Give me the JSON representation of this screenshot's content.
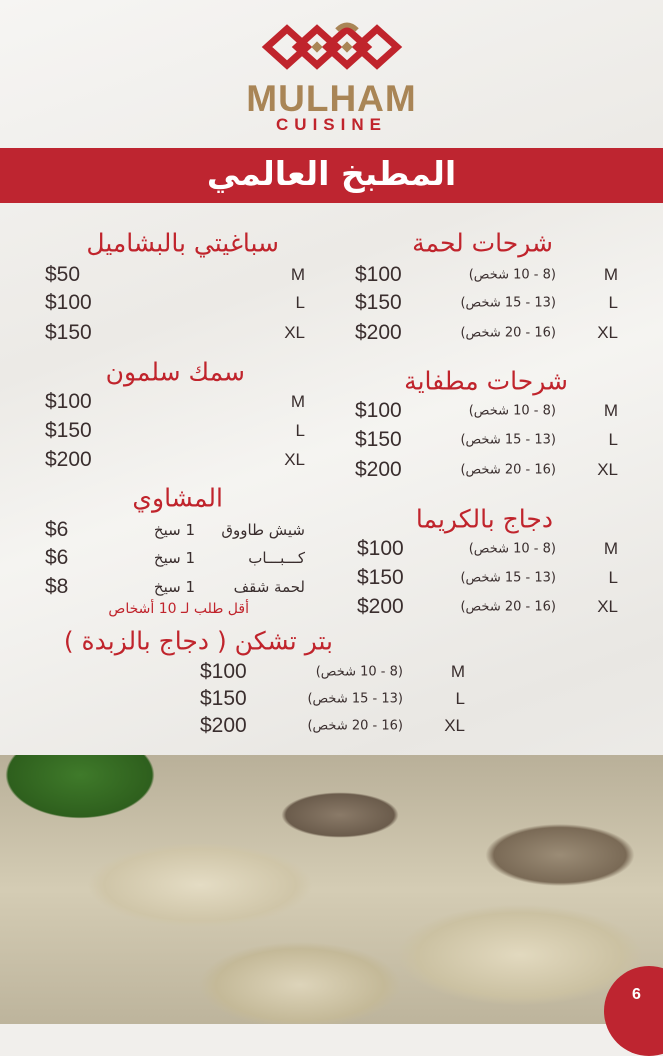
{
  "brand": {
    "name": "MULHAM",
    "sub": "CUISINE",
    "colors": {
      "gold": "#a98556",
      "red": "#c0242c"
    }
  },
  "banner": "المطبخ العالمي",
  "sections": [
    {
      "title": "شرحات لحمة",
      "rows": [
        {
          "size": "M",
          "persons": "(8 - 10 شخص)",
          "price": "$100"
        },
        {
          "size": "L",
          "persons": "(13 - 15 شخص)",
          "price": "$150"
        },
        {
          "size": "XL",
          "persons": "(16 - 20 شخص)",
          "price": "$200"
        }
      ]
    },
    {
      "title": "شرحات مطفاية",
      "rows": [
        {
          "size": "M",
          "persons": "(8 - 10 شخص)",
          "price": "$100"
        },
        {
          "size": "L",
          "persons": "(13 - 15 شخص)",
          "price": "$150"
        },
        {
          "size": "XL",
          "persons": "(16 - 20 شخص)",
          "price": "$200"
        }
      ]
    },
    {
      "title": "دجاج بالكريما",
      "rows": [
        {
          "size": "M",
          "persons": "(8 - 10 شخص)",
          "price": "$100"
        },
        {
          "size": "L",
          "persons": "(13 - 15 شخص)",
          "price": "$150"
        },
        {
          "size": "XL",
          "persons": "(16 - 20 شخص)",
          "price": "$200"
        }
      ]
    },
    {
      "title": "سباغيتي بالبشاميل",
      "rows": [
        {
          "size": "M",
          "price": "$50"
        },
        {
          "size": "L",
          "price": "$100"
        },
        {
          "size": "XL",
          "price": "$150"
        }
      ]
    },
    {
      "title": "سمك سلمون",
      "rows": [
        {
          "size": "M",
          "price": "$100"
        },
        {
          "size": "L",
          "price": "$150"
        },
        {
          "size": "XL",
          "price": "$200"
        }
      ]
    },
    {
      "title": "بتر تشكن ( دجاج بالزبدة )",
      "rows": [
        {
          "size": "M",
          "persons": "(8 - 10 شخص)",
          "price": "$100"
        },
        {
          "size": "L",
          "persons": "(13 - 15 شخص)",
          "price": "$150"
        },
        {
          "size": "XL",
          "persons": "(16 - 20 شخص)",
          "price": "$200"
        }
      ]
    }
  ],
  "grills": {
    "title": "المشاوي",
    "items": [
      {
        "name": "شيش طاووق",
        "qty": "1 سيخ",
        "price": "$6"
      },
      {
        "name": "كـــبـــاب",
        "qty": "1 سيخ",
        "price": "$6"
      },
      {
        "name": "لحمة شقف",
        "qty": "1 سيخ",
        "price": "$8"
      }
    ],
    "note": "أقل طلب لـ 10 أشخاص"
  },
  "page_number": "6"
}
